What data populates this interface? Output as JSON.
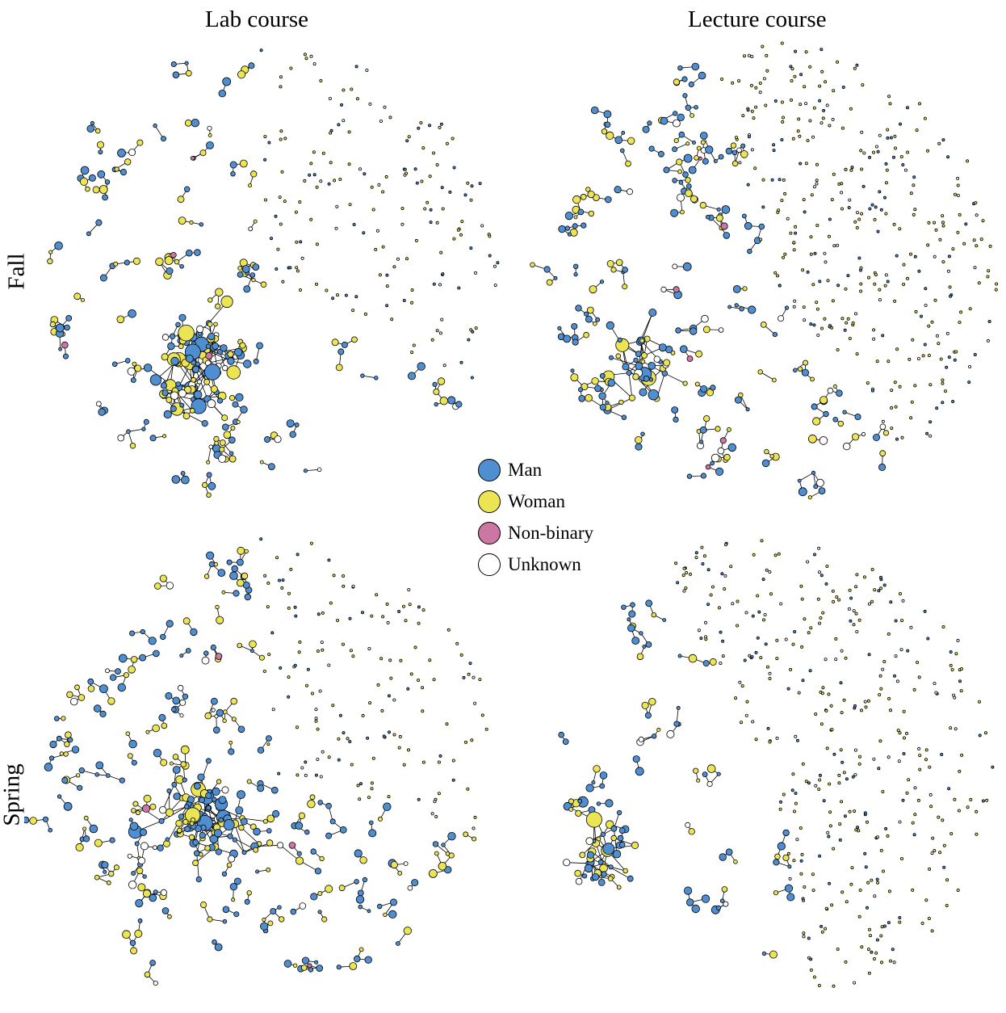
{
  "columns": [
    "Lab course",
    "Lecture course"
  ],
  "rows": [
    "Fall",
    "Spring"
  ],
  "legend": [
    {
      "label": "Man",
      "color": "#4f8ed0",
      "key": "man"
    },
    {
      "label": "Woman",
      "color": "#ece553",
      "key": "woman"
    },
    {
      "label": "Non-binary",
      "color": "#cc76a4",
      "key": "nonbinary"
    },
    {
      "label": "Unknown",
      "color": "#ffffff",
      "key": "unknown"
    }
  ],
  "colors": {
    "edge": "#000000",
    "stroke": "#000000"
  }
}
